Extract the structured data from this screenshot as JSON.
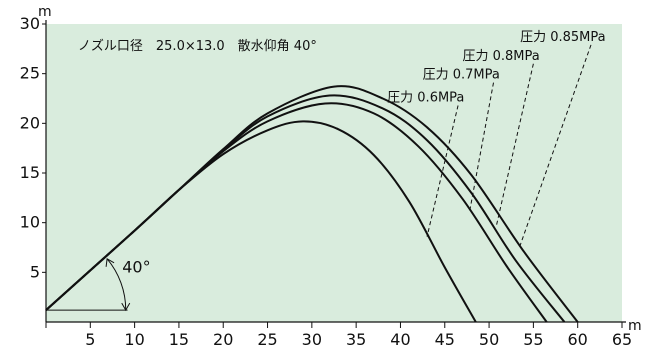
{
  "chart_data": {
    "type": "line",
    "title": "",
    "subtitle": "ノズル口径　25.0×13.0　散水仰角  40°",
    "xlabel": "m",
    "ylabel": "m",
    "xlim": [
      0,
      65
    ],
    "ylim": [
      0,
      30
    ],
    "x_ticks": [
      "5",
      "10",
      "15",
      "20",
      "25",
      "30",
      "35",
      "40",
      "45",
      "50",
      "55",
      "60",
      "65"
    ],
    "y_ticks": [
      "5",
      "10",
      "15",
      "20",
      "25",
      "30"
    ],
    "grid": false,
    "background_color": "#d9ecdd",
    "line_color": "#111111",
    "angle_annotation": {
      "label": "40°",
      "angle_deg": 40
    },
    "series": [
      {
        "name": "圧力 0.6MPa",
        "x": [
          0,
          10,
          15,
          20,
          25,
          29,
          33,
          37,
          41,
          45,
          48.5
        ],
        "y": [
          1.2,
          9.2,
          13.3,
          16.9,
          19.3,
          20.2,
          19.4,
          16.8,
          12.1,
          5.5,
          0
        ]
      },
      {
        "name": "圧力 0.7MPa",
        "x": [
          0,
          10,
          15,
          20,
          25,
          31.5,
          37,
          42,
          47,
          52,
          56.5
        ],
        "y": [
          1.2,
          9.2,
          13.3,
          17.2,
          20.2,
          22.0,
          21.0,
          17.7,
          12.4,
          5.6,
          0
        ]
      },
      {
        "name": "圧力 0.8MPa",
        "x": [
          0,
          10,
          15,
          20,
          25,
          32,
          38,
          43,
          48,
          53,
          58.5
        ],
        "y": [
          1.2,
          9.2,
          13.3,
          17.3,
          20.7,
          22.8,
          21.5,
          18.3,
          13.0,
          6.2,
          0
        ]
      },
      {
        "name": "圧力 0.85MPa",
        "x": [
          0,
          10,
          15,
          20,
          25,
          32.5,
          38,
          43,
          48,
          54,
          60
        ],
        "y": [
          1.2,
          9.2,
          13.3,
          17.4,
          21.0,
          23.7,
          22.5,
          19.6,
          14.8,
          7.0,
          0
        ]
      }
    ],
    "labels": [
      {
        "text": "圧力 0.85MPa",
        "x": 53.5,
        "y": 28.3,
        "leader_to": [
          53.5,
          7.7
        ]
      },
      {
        "text": "圧力 0.8MPa",
        "x": 47.0,
        "y": 26.4,
        "leader_to": [
          50.8,
          9.6
        ]
      },
      {
        "text": "圧力 0.7MPa",
        "x": 42.5,
        "y": 24.5,
        "leader_to": [
          47.8,
          11.1
        ]
      },
      {
        "text": "圧力 0.6MPa",
        "x": 38.5,
        "y": 22.2,
        "leader_to": [
          43.0,
          8.6
        ]
      }
    ]
  }
}
